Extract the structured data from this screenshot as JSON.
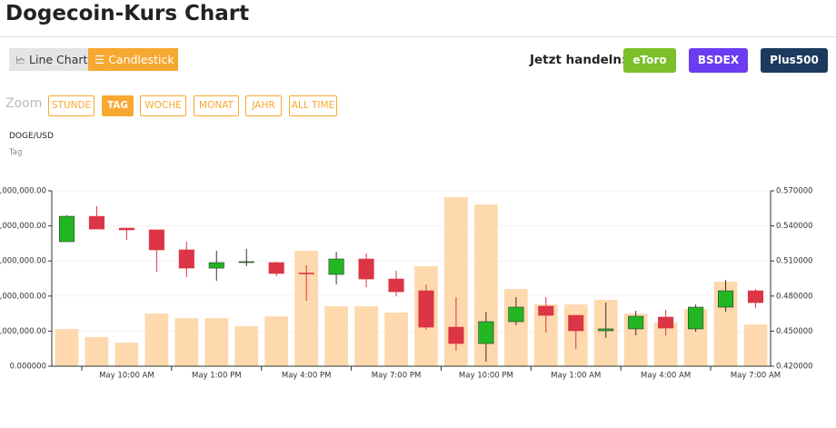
{
  "header": {
    "title": "Dogecoin-Kurs Chart"
  },
  "controls": {
    "chart_types": [
      "Line Chart",
      "Candlestick"
    ],
    "trade_label": "Jetzt handeln:",
    "brokers": [
      "eToro",
      "BSDEX",
      "Plus500"
    ],
    "zoom_label": "Zoom",
    "zoom_options": [
      "STUNDE",
      "TAG",
      "WOCHE",
      "MONAT",
      "JAHR",
      "ALL TIME"
    ]
  },
  "chart_data": {
    "type": "candlestick",
    "title": "DOGE/USD",
    "subtitle": "Tag",
    "categories": [
      null,
      null,
      "May 10:00 AM",
      null,
      null,
      "May 1:00 PM",
      null,
      null,
      "May 4:00 PM",
      null,
      null,
      "May 7:00 PM",
      null,
      null,
      "May 10:00 PM",
      null,
      null,
      "May 1:00 AM",
      null,
      null,
      "May 4:00 AM",
      null,
      null,
      "May 7:00 AM"
    ],
    "open": [
      0.5265,
      0.5482,
      0.5381,
      0.5366,
      0.5195,
      0.5039,
      0.509,
      0.5086,
      0.4997,
      0.4985,
      0.5117,
      0.4946,
      0.4845,
      0.4534,
      0.4394,
      0.4581,
      0.4713,
      0.4635,
      0.4503,
      0.4519,
      0.462,
      0.4519,
      0.4705,
      0.4845
    ],
    "high": [
      0.549,
      0.5568,
      0.5385,
      0.537,
      0.5265,
      0.5187,
      0.5203,
      0.5094,
      0.5063,
      0.5179,
      0.5164,
      0.5016,
      0.4899,
      0.4791,
      0.4666,
      0.4791,
      0.4791,
      0.4635,
      0.4744,
      0.4674,
      0.4682,
      0.4728,
      0.4938,
      0.486
    ],
    "low": [
      0.5265,
      0.5373,
      0.528,
      0.5008,
      0.4962,
      0.4931,
      0.5055,
      0.497,
      0.476,
      0.49,
      0.4876,
      0.4798,
      0.4511,
      0.4332,
      0.4239,
      0.455,
      0.4488,
      0.4348,
      0.4441,
      0.4464,
      0.4464,
      0.4495,
      0.4666,
      0.4697
    ],
    "close": [
      0.5482,
      0.5373,
      0.5366,
      0.5195,
      0.5039,
      0.5086,
      0.5094,
      0.4993,
      0.499,
      0.5117,
      0.4946,
      0.4837,
      0.4534,
      0.4394,
      0.4581,
      0.4705,
      0.4635,
      0.4503,
      0.4519,
      0.4627,
      0.4526,
      0.4705,
      0.4845,
      0.4744
    ],
    "up_color": "#22b722",
    "down_color": "#dc3545",
    "neutral_color": "#444444",
    "volume": {
      "values": [
        1060000000,
        830000000,
        670000000,
        1500000000,
        1370000000,
        1370000000,
        1140000000,
        1420000000,
        3290000000,
        1710000000,
        1710000000,
        1530000000,
        2850000000,
        4820000000,
        4610000000,
        2200000000,
        1760000000,
        1760000000,
        1890000000,
        1500000000,
        1240000000,
        1630000000,
        2410000000,
        1190000000
      ],
      "color": "#fdd9ad"
    },
    "ylim": [
      0,
      5000000000
    ],
    "yticks": [
      {
        "value": 0,
        "label": "0.000000"
      },
      {
        "value": 1000000000,
        "label": ",000,000.00"
      },
      {
        "value": 2000000000,
        "label": ",000,000.00"
      },
      {
        "value": 3000000000,
        "label": ",000,000.00"
      },
      {
        "value": 4000000000,
        "label": ",000,000.00"
      },
      {
        "value": 5000000000,
        "label": ",000,000.00"
      }
    ],
    "y2lim": [
      0.42,
      0.57
    ],
    "y2ticks": [
      {
        "value": 0.42,
        "label": "0.420000"
      },
      {
        "value": 0.45,
        "label": "0.450000"
      },
      {
        "value": 0.48,
        "label": "0.480000"
      },
      {
        "value": 0.51,
        "label": "0.510000"
      },
      {
        "value": 0.54,
        "label": "0.540000"
      },
      {
        "value": 0.57,
        "label": "0.570000"
      }
    ],
    "grid": true
  }
}
